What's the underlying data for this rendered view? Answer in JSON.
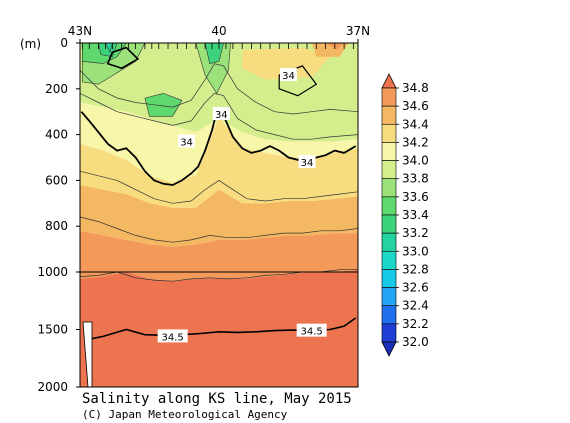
{
  "chart_data": {
    "type": "heatmap",
    "title": "Salinity along KS line, May 2015",
    "credit": "(C) Japan Meteorological Agency",
    "x_axis": {
      "ticks": [
        {
          "lat": 43,
          "label": "43N"
        },
        {
          "lat": 40,
          "label": "40"
        },
        {
          "lat": 37,
          "label": "37N"
        }
      ],
      "range": [
        43,
        37
      ]
    },
    "y_axis": {
      "unit_label": "(m)",
      "upper_range": [
        0,
        1000
      ],
      "lower_range": [
        1000,
        2000
      ],
      "ticks": [
        {
          "depth": 0,
          "label": "0"
        },
        {
          "depth": 200,
          "label": "200"
        },
        {
          "depth": 400,
          "label": "400"
        },
        {
          "depth": 600,
          "label": "600"
        },
        {
          "depth": 800,
          "label": "800"
        },
        {
          "depth": 1000,
          "label": "1000"
        },
        {
          "depth": 1500,
          "label": "1500"
        },
        {
          "depth": 2000,
          "label": "2000"
        }
      ]
    },
    "colorbar": {
      "levels": [
        {
          "value": 32.0,
          "label": "32.0",
          "color": "#1d3fd6"
        },
        {
          "value": 32.2,
          "label": "32.2",
          "color": "#1f6fee"
        },
        {
          "value": 32.4,
          "label": "32.4",
          "color": "#23a4f5"
        },
        {
          "value": 32.6,
          "label": "32.6",
          "color": "#16c9e6"
        },
        {
          "value": 32.8,
          "label": "32.8",
          "color": "#1cd8c8"
        },
        {
          "value": 33.0,
          "label": "33.0",
          "color": "#22d2a0"
        },
        {
          "value": 33.2,
          "label": "33.2",
          "color": "#3cd37c"
        },
        {
          "value": 33.4,
          "label": "33.4",
          "color": "#5fd86e"
        },
        {
          "value": 33.6,
          "label": "33.6",
          "color": "#9be27a"
        },
        {
          "value": 33.8,
          "label": "33.8",
          "color": "#d4ee8e"
        },
        {
          "value": 34.0,
          "label": "34.0",
          "color": "#f8f6a8"
        },
        {
          "value": 34.2,
          "label": "34.2",
          "color": "#f8dd80"
        },
        {
          "value": 34.4,
          "label": "34.4",
          "color": "#f5b862"
        },
        {
          "value": 34.6,
          "label": "34.6",
          "color": "#f39a5a"
        },
        {
          "value": 34.8,
          "label": "34.8",
          "color": "#ec744e"
        }
      ]
    },
    "contour_labels": [
      {
        "text": "34",
        "lat": 40.7,
        "depth": 430
      },
      {
        "text": "34",
        "lat": 39.95,
        "depth": 310
      },
      {
        "text": "34",
        "lat": 38.5,
        "depth": 140
      },
      {
        "text": "34",
        "lat": 38.1,
        "depth": 520
      },
      {
        "text": "34.5",
        "lat": 41.0,
        "depth": 1560
      },
      {
        "text": "34.5",
        "lat": 38.0,
        "depth": 1510
      }
    ],
    "contour_34_5": [
      [
        42.75,
        1580
      ],
      [
        42.5,
        1560
      ],
      [
        42.0,
        1500
      ],
      [
        41.6,
        1545
      ],
      [
        41.2,
        1550
      ],
      [
        40.8,
        1545
      ],
      [
        40.4,
        1535
      ],
      [
        40.0,
        1520
      ],
      [
        39.6,
        1525
      ],
      [
        39.2,
        1520
      ],
      [
        38.8,
        1510
      ],
      [
        38.4,
        1505
      ],
      [
        38.0,
        1505
      ],
      [
        37.6,
        1500
      ],
      [
        37.3,
        1470
      ],
      [
        37.05,
        1400
      ]
    ],
    "contour_34": [
      [
        42.97,
        300
      ],
      [
        42.8,
        340
      ],
      [
        42.6,
        390
      ],
      [
        42.4,
        440
      ],
      [
        42.2,
        470
      ],
      [
        42.0,
        460
      ],
      [
        41.8,
        500
      ],
      [
        41.6,
        560
      ],
      [
        41.4,
        600
      ],
      [
        41.2,
        615
      ],
      [
        41.0,
        620
      ],
      [
        40.8,
        600
      ],
      [
        40.6,
        570
      ],
      [
        40.45,
        540
      ],
      [
        40.3,
        470
      ],
      [
        40.15,
        380
      ],
      [
        40.05,
        300
      ],
      [
        39.95,
        290
      ],
      [
        39.85,
        340
      ],
      [
        39.7,
        410
      ],
      [
        39.5,
        460
      ],
      [
        39.3,
        480
      ],
      [
        39.1,
        470
      ],
      [
        38.9,
        450
      ],
      [
        38.7,
        470
      ],
      [
        38.5,
        500
      ],
      [
        38.3,
        510
      ],
      [
        38.1,
        510
      ],
      [
        37.9,
        500
      ],
      [
        37.7,
        490
      ],
      [
        37.5,
        470
      ],
      [
        37.3,
        480
      ],
      [
        37.05,
        450
      ]
    ]
  }
}
